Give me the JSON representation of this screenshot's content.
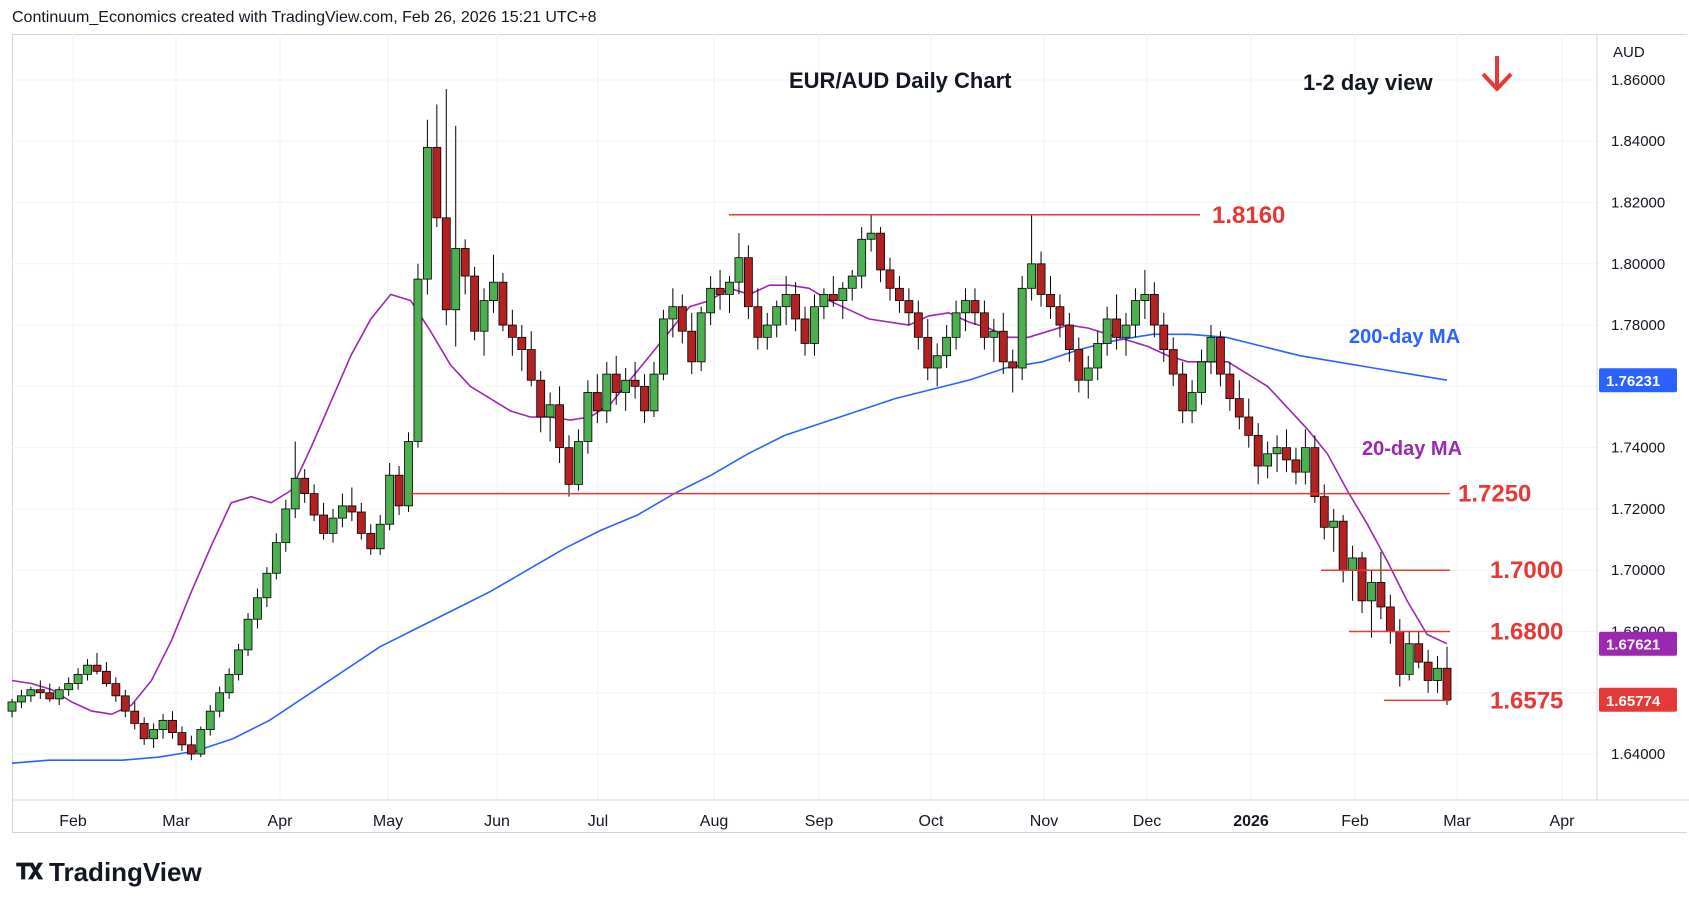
{
  "header": {
    "attribution": "Continuum_Economics created with TradingView.com, Feb 26, 2026 15:21 UTC+8"
  },
  "footer": {
    "brand": "TradingView"
  },
  "chart_data": {
    "type": "candlestick",
    "title": "EUR/AUD Daily Chart",
    "view_label": "1-2 day view",
    "view_direction": "down",
    "currency": "AUD",
    "ylim": [
      1.625,
      1.875
    ],
    "y_ticks": [
      "1.64000",
      "1.66000",
      "1.68000",
      "1.70000",
      "1.72000",
      "1.74000",
      "1.76000",
      "1.78000",
      "1.80000",
      "1.82000",
      "1.84000",
      "1.86000"
    ],
    "x_ticks": [
      "Feb",
      "Mar",
      "Apr",
      "May",
      "Jun",
      "Jul",
      "Aug",
      "Sep",
      "Oct",
      "Nov",
      "Dec",
      "2026",
      "Feb",
      "Mar",
      "Apr"
    ],
    "colors": {
      "up": "#26a69a",
      "down": "#ef5350",
      "candle_up": "#4caf50",
      "candle_down": "#b22222",
      "level": "#e53935",
      "ma20": "#9c27b0",
      "ma200": "#2962ff",
      "arrow": "#e53935"
    },
    "levels": [
      {
        "label": "1.8160",
        "value": 1.816
      },
      {
        "label": "1.7250",
        "value": 1.725
      },
      {
        "label": "1.7000",
        "value": 1.7
      },
      {
        "label": "1.6800",
        "value": 1.68
      },
      {
        "label": "1.6575",
        "value": 1.6575
      }
    ],
    "series": [
      {
        "name": "20-day MA",
        "last_label": "1.67621",
        "color": "#9c27b0",
        "values": [
          1.664,
          1.663,
          1.661,
          1.657,
          1.654,
          1.653,
          1.656,
          1.664,
          1.677,
          1.693,
          1.708,
          1.722,
          1.724,
          1.722,
          1.726,
          1.74,
          1.755,
          1.77,
          1.782,
          1.79,
          1.788,
          1.778,
          1.767,
          1.76,
          1.756,
          1.752,
          1.75,
          1.75,
          1.749,
          1.75,
          1.754,
          1.762,
          1.77,
          1.778,
          1.786,
          1.788,
          1.792,
          1.79,
          1.793,
          1.793,
          1.792,
          1.788,
          1.785,
          1.782,
          1.781,
          1.78,
          1.783,
          1.784,
          1.781,
          1.779,
          1.776,
          1.776,
          1.778,
          1.78,
          1.779,
          1.777,
          1.775,
          1.773,
          1.77,
          1.768,
          1.768,
          1.768,
          1.764,
          1.76,
          1.753,
          1.746,
          1.738,
          1.726,
          1.715,
          1.703,
          1.69,
          1.679,
          1.676
        ]
      },
      {
        "name": "200-day MA",
        "last_label": "1.76231",
        "color": "#2962ff",
        "values": [
          1.637,
          1.638,
          1.638,
          1.638,
          1.639,
          1.641,
          1.645,
          1.651,
          1.659,
          1.667,
          1.675,
          1.681,
          1.687,
          1.693,
          1.7,
          1.707,
          1.713,
          1.718,
          1.725,
          1.731,
          1.738,
          1.744,
          1.748,
          1.752,
          1.756,
          1.759,
          1.762,
          1.766,
          1.768,
          1.772,
          1.775,
          1.777,
          1.777,
          1.776,
          1.773,
          1.77,
          1.768,
          1.766,
          1.764,
          1.762
        ]
      },
      {
        "name": "EUR/AUD",
        "last_label": "1.65774",
        "candles": [
          [
            1.654,
            1.658,
            1.652,
            1.657
          ],
          [
            1.657,
            1.661,
            1.655,
            1.659
          ],
          [
            1.659,
            1.662,
            1.657,
            1.661
          ],
          [
            1.661,
            1.664,
            1.658,
            1.66
          ],
          [
            1.66,
            1.663,
            1.657,
            1.658
          ],
          [
            1.658,
            1.662,
            1.656,
            1.661
          ],
          [
            1.661,
            1.665,
            1.659,
            1.663
          ],
          [
            1.663,
            1.668,
            1.661,
            1.666
          ],
          [
            1.666,
            1.671,
            1.664,
            1.669
          ],
          [
            1.669,
            1.673,
            1.666,
            1.667
          ],
          [
            1.667,
            1.67,
            1.662,
            1.663
          ],
          [
            1.663,
            1.665,
            1.657,
            1.659
          ],
          [
            1.659,
            1.661,
            1.652,
            1.654
          ],
          [
            1.654,
            1.657,
            1.648,
            1.65
          ],
          [
            1.65,
            1.652,
            1.643,
            1.645
          ],
          [
            1.645,
            1.65,
            1.642,
            1.648
          ],
          [
            1.648,
            1.653,
            1.645,
            1.651
          ],
          [
            1.651,
            1.654,
            1.645,
            1.647
          ],
          [
            1.647,
            1.649,
            1.641,
            1.643
          ],
          [
            1.643,
            1.646,
            1.638,
            1.64
          ],
          [
            1.64,
            1.649,
            1.639,
            1.648
          ],
          [
            1.648,
            1.656,
            1.646,
            1.654
          ],
          [
            1.654,
            1.662,
            1.652,
            1.66
          ],
          [
            1.66,
            1.668,
            1.658,
            1.666
          ],
          [
            1.666,
            1.676,
            1.664,
            1.674
          ],
          [
            1.674,
            1.686,
            1.672,
            1.684
          ],
          [
            1.684,
            1.694,
            1.681,
            1.691
          ],
          [
            1.691,
            1.701,
            1.688,
            1.699
          ],
          [
            1.699,
            1.712,
            1.697,
            1.709
          ],
          [
            1.709,
            1.723,
            1.706,
            1.72
          ],
          [
            1.72,
            1.742,
            1.717,
            1.73
          ],
          [
            1.73,
            1.733,
            1.722,
            1.725
          ],
          [
            1.725,
            1.728,
            1.716,
            1.718
          ],
          [
            1.718,
            1.722,
            1.71,
            1.712
          ],
          [
            1.712,
            1.72,
            1.709,
            1.717
          ],
          [
            1.717,
            1.725,
            1.714,
            1.721
          ],
          [
            1.721,
            1.727,
            1.716,
            1.719
          ],
          [
            1.719,
            1.722,
            1.71,
            1.712
          ],
          [
            1.712,
            1.715,
            1.705,
            1.707
          ],
          [
            1.707,
            1.718,
            1.705,
            1.715
          ],
          [
            1.715,
            1.735,
            1.713,
            1.731
          ],
          [
            1.731,
            1.734,
            1.718,
            1.721
          ],
          [
            1.721,
            1.745,
            1.719,
            1.742
          ],
          [
            1.742,
            1.8,
            1.74,
            1.795
          ],
          [
            1.795,
            1.847,
            1.79,
            1.838
          ],
          [
            1.838,
            1.852,
            1.812,
            1.815
          ],
          [
            1.815,
            1.857,
            1.78,
            1.785
          ],
          [
            1.785,
            1.845,
            1.773,
            1.805
          ],
          [
            1.805,
            1.808,
            1.79,
            1.796
          ],
          [
            1.796,
            1.799,
            1.775,
            1.778
          ],
          [
            1.778,
            1.792,
            1.77,
            1.788
          ],
          [
            1.788,
            1.803,
            1.784,
            1.794
          ],
          [
            1.794,
            1.797,
            1.778,
            1.78
          ],
          [
            1.78,
            1.785,
            1.77,
            1.776
          ],
          [
            1.776,
            1.78,
            1.765,
            1.772
          ],
          [
            1.772,
            1.778,
            1.76,
            1.762
          ],
          [
            1.762,
            1.765,
            1.745,
            1.75
          ],
          [
            1.75,
            1.758,
            1.742,
            1.754
          ],
          [
            1.754,
            1.76,
            1.735,
            1.74
          ],
          [
            1.74,
            1.744,
            1.724,
            1.728
          ],
          [
            1.728,
            1.746,
            1.726,
            1.742
          ],
          [
            1.742,
            1.762,
            1.738,
            1.758
          ],
          [
            1.758,
            1.764,
            1.748,
            1.752
          ],
          [
            1.752,
            1.768,
            1.748,
            1.764
          ],
          [
            1.764,
            1.77,
            1.754,
            1.758
          ],
          [
            1.758,
            1.766,
            1.752,
            1.762
          ],
          [
            1.762,
            1.768,
            1.756,
            1.76
          ],
          [
            1.76,
            1.764,
            1.748,
            1.752
          ],
          [
            1.752,
            1.768,
            1.75,
            1.764
          ],
          [
            1.764,
            1.785,
            1.762,
            1.782
          ],
          [
            1.782,
            1.792,
            1.776,
            1.786
          ],
          [
            1.786,
            1.79,
            1.774,
            1.778
          ],
          [
            1.778,
            1.784,
            1.764,
            1.768
          ],
          [
            1.768,
            1.786,
            1.765,
            1.784
          ],
          [
            1.784,
            1.796,
            1.78,
            1.792
          ],
          [
            1.792,
            1.798,
            1.785,
            1.79
          ],
          [
            1.79,
            1.796,
            1.784,
            1.794
          ],
          [
            1.794,
            1.81,
            1.79,
            1.802
          ],
          [
            1.802,
            1.806,
            1.782,
            1.786
          ],
          [
            1.786,
            1.792,
            1.772,
            1.776
          ],
          [
            1.776,
            1.784,
            1.772,
            1.78
          ],
          [
            1.78,
            1.788,
            1.776,
            1.786
          ],
          [
            1.786,
            1.796,
            1.78,
            1.79
          ],
          [
            1.79,
            1.794,
            1.778,
            1.782
          ],
          [
            1.782,
            1.786,
            1.77,
            1.774
          ],
          [
            1.774,
            1.79,
            1.77,
            1.786
          ],
          [
            1.786,
            1.792,
            1.782,
            1.79
          ],
          [
            1.79,
            1.796,
            1.786,
            1.788
          ],
          [
            1.788,
            1.794,
            1.782,
            1.792
          ],
          [
            1.792,
            1.798,
            1.788,
            1.796
          ],
          [
            1.796,
            1.812,
            1.792,
            1.808
          ],
          [
            1.808,
            1.816,
            1.804,
            1.81
          ],
          [
            1.81,
            1.812,
            1.794,
            1.798
          ],
          [
            1.798,
            1.802,
            1.788,
            1.792
          ],
          [
            1.792,
            1.796,
            1.784,
            1.788
          ],
          [
            1.788,
            1.792,
            1.78,
            1.784
          ],
          [
            1.784,
            1.788,
            1.772,
            1.776
          ],
          [
            1.776,
            1.782,
            1.762,
            1.766
          ],
          [
            1.766,
            1.774,
            1.76,
            1.77
          ],
          [
            1.77,
            1.78,
            1.766,
            1.776
          ],
          [
            1.776,
            1.788,
            1.772,
            1.784
          ],
          [
            1.784,
            1.792,
            1.778,
            1.788
          ],
          [
            1.788,
            1.792,
            1.78,
            1.784
          ],
          [
            1.784,
            1.788,
            1.772,
            1.776
          ],
          [
            1.776,
            1.782,
            1.768,
            1.778
          ],
          [
            1.778,
            1.784,
            1.764,
            1.768
          ],
          [
            1.768,
            1.772,
            1.758,
            1.766
          ],
          [
            1.766,
            1.796,
            1.762,
            1.792
          ],
          [
            1.792,
            1.816,
            1.788,
            1.8
          ],
          [
            1.8,
            1.804,
            1.786,
            1.79
          ],
          [
            1.79,
            1.796,
            1.782,
            1.786
          ],
          [
            1.786,
            1.79,
            1.776,
            1.78
          ],
          [
            1.78,
            1.784,
            1.768,
            1.772
          ],
          [
            1.772,
            1.776,
            1.758,
            1.762
          ],
          [
            1.762,
            1.77,
            1.756,
            1.766
          ],
          [
            1.766,
            1.778,
            1.762,
            1.774
          ],
          [
            1.774,
            1.786,
            1.77,
            1.782
          ],
          [
            1.782,
            1.79,
            1.772,
            1.776
          ],
          [
            1.776,
            1.784,
            1.77,
            1.78
          ],
          [
            1.78,
            1.792,
            1.776,
            1.788
          ],
          [
            1.788,
            1.798,
            1.782,
            1.79
          ],
          [
            1.79,
            1.794,
            1.776,
            1.78
          ],
          [
            1.78,
            1.784,
            1.768,
            1.772
          ],
          [
            1.772,
            1.776,
            1.76,
            1.764
          ],
          [
            1.764,
            1.768,
            1.748,
            1.752
          ],
          [
            1.752,
            1.762,
            1.748,
            1.758
          ],
          [
            1.758,
            1.772,
            1.754,
            1.768
          ],
          [
            1.768,
            1.78,
            1.764,
            1.776
          ],
          [
            1.776,
            1.778,
            1.76,
            1.764
          ],
          [
            1.764,
            1.768,
            1.752,
            1.756
          ],
          [
            1.756,
            1.762,
            1.746,
            1.75
          ],
          [
            1.75,
            1.756,
            1.74,
            1.744
          ],
          [
            1.744,
            1.748,
            1.728,
            1.734
          ],
          [
            1.734,
            1.742,
            1.73,
            1.738
          ],
          [
            1.738,
            1.744,
            1.732,
            1.74
          ],
          [
            1.74,
            1.746,
            1.732,
            1.736
          ],
          [
            1.736,
            1.74,
            1.728,
            1.732
          ],
          [
            1.732,
            1.746,
            1.728,
            1.74
          ],
          [
            1.74,
            1.744,
            1.722,
            1.724
          ],
          [
            1.724,
            1.728,
            1.71,
            1.714
          ],
          [
            1.714,
            1.72,
            1.706,
            1.716
          ],
          [
            1.716,
            1.718,
            1.696,
            1.7
          ],
          [
            1.7,
            1.708,
            1.69,
            1.704
          ],
          [
            1.704,
            1.706,
            1.686,
            1.69
          ],
          [
            1.69,
            1.7,
            1.678,
            1.696
          ],
          [
            1.696,
            1.706,
            1.684,
            1.688
          ],
          [
            1.688,
            1.692,
            1.676,
            1.68
          ],
          [
            1.68,
            1.684,
            1.662,
            1.666
          ],
          [
            1.666,
            1.68,
            1.664,
            1.676
          ],
          [
            1.676,
            1.68,
            1.668,
            1.67
          ],
          [
            1.67,
            1.674,
            1.66,
            1.664
          ],
          [
            1.664,
            1.672,
            1.66,
            1.668
          ],
          [
            1.668,
            1.675,
            1.656,
            1.6577
          ]
        ]
      }
    ]
  }
}
